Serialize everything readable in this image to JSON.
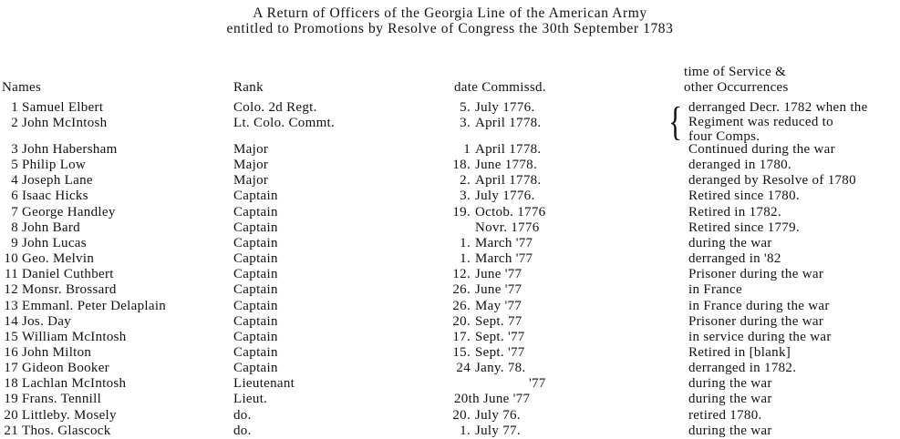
{
  "title": {
    "line1": "A Return of Officers of the Georgia Line of the American Army",
    "line2": "entitled to Promotions by Resolve of Congress the 30th September 1783"
  },
  "headers": {
    "names": "Names",
    "rank": "Rank",
    "date": "date Commissd.",
    "service_line1": "time of Service &",
    "service_line2": "other Occurrences"
  },
  "bracketed_note": [
    "derranged Decr. 1782 when the",
    "Regiment was reduced to",
    "four Comps."
  ],
  "rows": [
    {
      "num": "1",
      "name": "Samuel Elbert",
      "rank": "Colo. 2d Regt.",
      "day": "5.",
      "date": "July 1776.",
      "occ": ""
    },
    {
      "num": "2",
      "name": "John McIntosh",
      "rank": "Lt. Colo. Commt.",
      "day": "3.",
      "date": "April 1778.",
      "occ": ""
    },
    {
      "num": "3",
      "name": "John Habersham",
      "rank": "Major",
      "day": "1",
      "date": "April 1778.",
      "occ": "Continued during the war"
    },
    {
      "num": "5",
      "name": "Philip Low",
      "rank": "Major",
      "day": "18.",
      "date": "June 1778.",
      "occ": "deranged in 1780."
    },
    {
      "num": "4",
      "name": "Joseph Lane",
      "rank": "Major",
      "day": "2.",
      "date": "April 1778.",
      "occ": "deranged by Resolve of 1780"
    },
    {
      "num": "6",
      "name": "Isaac Hicks",
      "rank": "Captain",
      "day": "3.",
      "date": "July 1776.",
      "occ": "Retired since 1780."
    },
    {
      "num": "7",
      "name": "George Handley",
      "rank": "Captain",
      "day": "19.",
      "date": "Octob. 1776",
      "occ": "Retired in 1782."
    },
    {
      "num": "8",
      "name": "John Bard",
      "rank": "Captain",
      "day": "",
      "date": "Novr. 1776",
      "occ": "Retired since 1779."
    },
    {
      "num": "9",
      "name": "John Lucas",
      "rank": "Captain",
      "day": "1.",
      "date": "March '77",
      "occ": "during the war"
    },
    {
      "num": "10",
      "name": "Geo. Melvin",
      "rank": "Captain",
      "day": "1.",
      "date": "March '77",
      "occ": "derranged in '82"
    },
    {
      "num": "11",
      "name": "Daniel Cuthbert",
      "rank": "Captain",
      "day": "12.",
      "date": "June '77",
      "occ": "Prisoner during the war"
    },
    {
      "num": "12",
      "name": "Monsr. Brossard",
      "rank": "Captain",
      "day": "26.",
      "date": "June '77",
      "occ": "in France"
    },
    {
      "num": "13",
      "name": "Emmanl. Peter Delaplain",
      "rank": "Captain",
      "day": "26.",
      "date": "May '77",
      "occ": "in France during the war"
    },
    {
      "num": "14",
      "name": "Jos. Day",
      "rank": "Captain",
      "day": "20.",
      "date": "Sept. 77",
      "occ": "Prisoner during the war"
    },
    {
      "num": "15",
      "name": "William McIntosh",
      "rank": "Captain",
      "day": "17.",
      "date": "Sept. '77",
      "occ": "in service during the war"
    },
    {
      "num": "16",
      "name": "John Milton",
      "rank": "Captain",
      "day": "15.",
      "date": "Sept. '77",
      "occ": "Retired in [blank]"
    },
    {
      "num": "17",
      "name": "Gideon Booker",
      "rank": "Captain",
      "day": "24",
      "date": "Jany. 78.",
      "occ": "derranged in 1782."
    },
    {
      "num": "18",
      "name": "Lachlan McIntosh",
      "rank": "Lieutenant",
      "day": "",
      "date": "'77",
      "occ": "during the war"
    },
    {
      "num": "19",
      "name": "Frans. Tennill",
      "rank": "Lieut.",
      "day": "",
      "date": "20th June '77",
      "occ": "during the war"
    },
    {
      "num": "20",
      "name": "Littleby. Mosely",
      "rank": "do.",
      "day": "20.",
      "date": "July 76.",
      "occ": "retired 1780."
    },
    {
      "num": "21",
      "name": "Thos. Glascock",
      "rank": "do.",
      "day": "1.",
      "date": "July 77.",
      "occ": "during the war"
    }
  ]
}
